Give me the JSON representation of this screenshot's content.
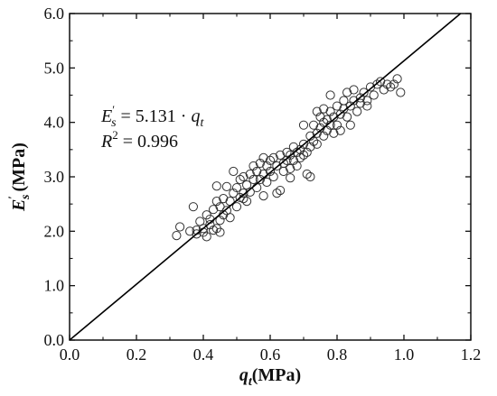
{
  "chart_data": {
    "type": "scatter",
    "title": "",
    "xlabel": {
      "symbol": "q",
      "subscript": "t",
      "unit": "(MPa)"
    },
    "ylabel": {
      "symbol": "E",
      "prime": "′",
      "subscript": "s",
      "unit": "(MPa)"
    },
    "xlim": [
      0.0,
      1.2
    ],
    "ylim": [
      0.0,
      6.0
    ],
    "x_ticks": [
      "0.0",
      "0.2",
      "0.4",
      "0.6",
      "0.8",
      "1.0",
      "1.2"
    ],
    "y_ticks": [
      "0.0",
      "1.0",
      "2.0",
      "3.0",
      "4.0",
      "5.0",
      "6.0"
    ],
    "grid": false,
    "legend": "none",
    "fit_line": {
      "slope": 5.131,
      "intercept": 0,
      "color": "#000000"
    },
    "annotation": {
      "equation": {
        "lhs_symbol": "E",
        "prime": "′",
        "lhs_sub": "s",
        "eq": " = ",
        "coef": "5.131",
        "dot": " · ",
        "rhs_symbol": "q",
        "rhs_sub": "t"
      },
      "r2": {
        "symbol": "R",
        "sup": "2",
        "eq": " = ",
        "value": "0.996"
      }
    },
    "marker": {
      "shape": "open-circle",
      "color": "#333333"
    },
    "points": [
      [
        0.32,
        1.92
      ],
      [
        0.33,
        2.08
      ],
      [
        0.37,
        2.45
      ],
      [
        0.38,
        2.02
      ],
      [
        0.38,
        1.95
      ],
      [
        0.39,
        2.18
      ],
      [
        0.4,
        2.05
      ],
      [
        0.4,
        1.98
      ],
      [
        0.41,
        2.3
      ],
      [
        0.41,
        1.9
      ],
      [
        0.42,
        2.12
      ],
      [
        0.42,
        2.22
      ],
      [
        0.43,
        2.02
      ],
      [
        0.43,
        2.4
      ],
      [
        0.44,
        2.05
      ],
      [
        0.44,
        2.55
      ],
      [
        0.44,
        2.83
      ],
      [
        0.45,
        2.2
      ],
      [
        0.45,
        2.45
      ],
      [
        0.46,
        2.3
      ],
      [
        0.46,
        2.6
      ],
      [
        0.47,
        2.82
      ],
      [
        0.47,
        2.38
      ],
      [
        0.48,
        2.55
      ],
      [
        0.48,
        2.25
      ],
      [
        0.49,
        2.7
      ],
      [
        0.49,
        3.1
      ],
      [
        0.5,
        2.45
      ],
      [
        0.5,
        2.8
      ],
      [
        0.51,
        2.62
      ],
      [
        0.51,
        2.95
      ],
      [
        0.52,
        2.7
      ],
      [
        0.52,
        3.0
      ],
      [
        0.53,
        2.55
      ],
      [
        0.53,
        2.85
      ],
      [
        0.54,
        3.05
      ],
      [
        0.54,
        2.72
      ],
      [
        0.55,
        2.95
      ],
      [
        0.55,
        3.2
      ],
      [
        0.56,
        2.8
      ],
      [
        0.56,
        3.1
      ],
      [
        0.57,
        2.95
      ],
      [
        0.57,
        3.25
      ],
      [
        0.58,
        3.35
      ],
      [
        0.58,
        3.05
      ],
      [
        0.59,
        3.2
      ],
      [
        0.59,
        2.9
      ],
      [
        0.6,
        3.1
      ],
      [
        0.6,
        3.3
      ],
      [
        0.61,
        3.0
      ],
      [
        0.61,
        3.35
      ],
      [
        0.62,
        3.2
      ],
      [
        0.62,
        2.7
      ],
      [
        0.63,
        3.4
      ],
      [
        0.63,
        2.75
      ],
      [
        0.64,
        3.25
      ],
      [
        0.64,
        3.1
      ],
      [
        0.65,
        3.3
      ],
      [
        0.65,
        3.45
      ],
      [
        0.66,
        3.15
      ],
      [
        0.66,
        3.4
      ],
      [
        0.67,
        3.55
      ],
      [
        0.67,
        3.3
      ],
      [
        0.68,
        3.45
      ],
      [
        0.68,
        3.2
      ],
      [
        0.69,
        3.5
      ],
      [
        0.69,
        3.35
      ],
      [
        0.7,
        3.4
      ],
      [
        0.7,
        3.6
      ],
      [
        0.71,
        3.45
      ],
      [
        0.71,
        3.05
      ],
      [
        0.72,
        3.55
      ],
      [
        0.72,
        3.75
      ],
      [
        0.72,
        3.0
      ],
      [
        0.73,
        3.65
      ],
      [
        0.73,
        3.95
      ],
      [
        0.74,
        3.8
      ],
      [
        0.74,
        3.6
      ],
      [
        0.75,
        3.9
      ],
      [
        0.75,
        4.1
      ],
      [
        0.76,
        3.75
      ],
      [
        0.76,
        4.0
      ],
      [
        0.76,
        4.25
      ],
      [
        0.77,
        3.85
      ],
      [
        0.77,
        4.05
      ],
      [
        0.78,
        3.95
      ],
      [
        0.78,
        4.2
      ],
      [
        0.78,
        4.5
      ],
      [
        0.79,
        3.8
      ],
      [
        0.79,
        4.1
      ],
      [
        0.8,
        3.95
      ],
      [
        0.8,
        4.3
      ],
      [
        0.81,
        4.15
      ],
      [
        0.81,
        3.85
      ],
      [
        0.82,
        4.25
      ],
      [
        0.82,
        4.4
      ],
      [
        0.83,
        4.1
      ],
      [
        0.83,
        4.55
      ],
      [
        0.84,
        4.3
      ],
      [
        0.84,
        3.95
      ],
      [
        0.85,
        4.4
      ],
      [
        0.85,
        4.6
      ],
      [
        0.86,
        4.2
      ],
      [
        0.87,
        4.45
      ],
      [
        0.87,
        4.35
      ],
      [
        0.88,
        4.55
      ],
      [
        0.89,
        4.4
      ],
      [
        0.9,
        4.65
      ],
      [
        0.91,
        4.5
      ],
      [
        0.92,
        4.7
      ],
      [
        0.93,
        4.75
      ],
      [
        0.94,
        4.6
      ],
      [
        0.95,
        4.7
      ],
      [
        0.97,
        4.7
      ],
      [
        0.98,
        4.8
      ],
      [
        0.99,
        4.55
      ],
      [
        0.52,
        2.6
      ],
      [
        0.45,
        1.98
      ],
      [
        0.36,
        2.0
      ],
      [
        0.58,
        2.65
      ],
      [
        0.66,
        2.98
      ],
      [
        0.74,
        4.2
      ],
      [
        0.7,
        3.95
      ],
      [
        0.89,
        4.3
      ],
      [
        0.96,
        4.65
      ]
    ]
  }
}
